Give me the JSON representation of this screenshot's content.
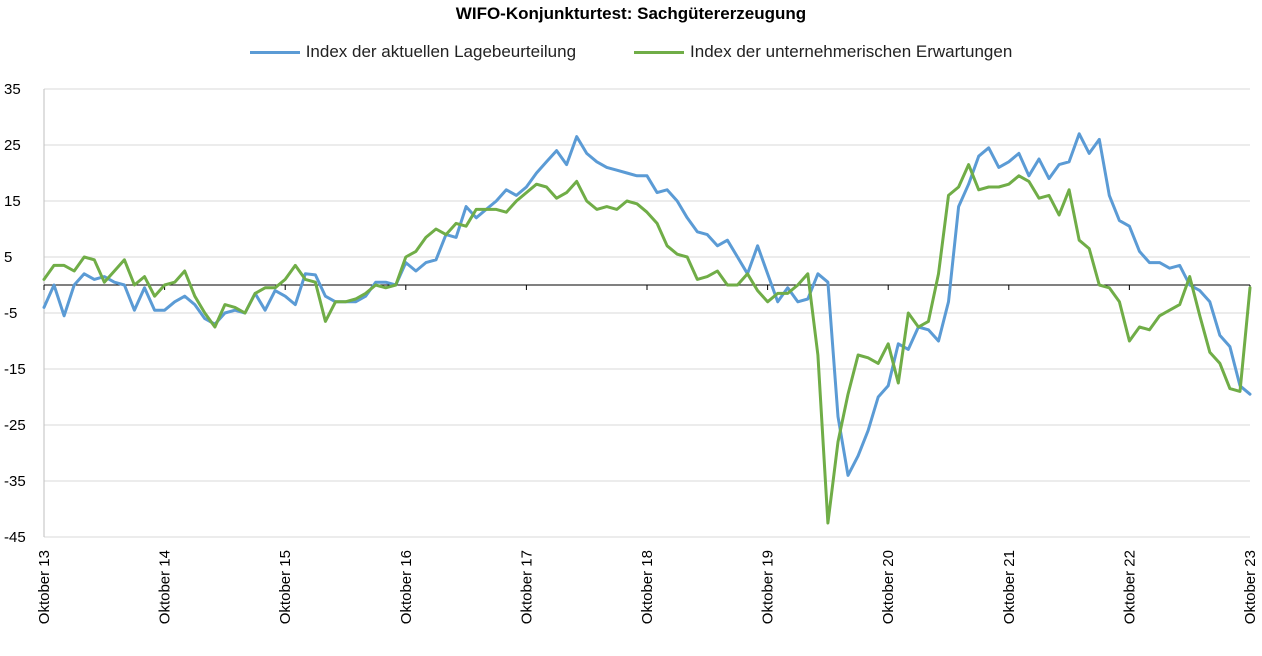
{
  "chart_data": {
    "type": "line",
    "title": "WIFO-Konjunkturtest: Sachgütererzeugung",
    "ylim": [
      -45,
      35
    ],
    "yticks": [
      35,
      25,
      15,
      5,
      -5,
      -15,
      -25,
      -35,
      -45
    ],
    "ytick_labels": [
      "35",
      "25",
      "15",
      "5",
      "-5",
      "-15",
      "-25",
      "-35",
      "-45"
    ],
    "x_tick_labels": [
      "Oktober 13",
      "Oktober 14",
      "Oktober 15",
      "Oktober 16",
      "Oktober 17",
      "Oktober 18",
      "Oktober 19",
      "Oktober 20",
      "Oktober 21",
      "Oktober 22",
      "Oktober 23"
    ],
    "x_tick_month_index": [
      0,
      12,
      24,
      36,
      48,
      60,
      72,
      84,
      96,
      108,
      120
    ],
    "legend_position": "top",
    "grid": true,
    "series": [
      {
        "name": "Index der aktuellen Lagebeurteilung",
        "color": "#5b9bd5",
        "values": [
          -4,
          0,
          -5.5,
          0,
          2,
          1,
          1.5,
          0.5,
          0,
          -4.5,
          -0.5,
          -4.5,
          -4.5,
          -3,
          -2,
          -3.5,
          -6,
          -7,
          -5,
          -4.5,
          -5,
          -1.5,
          -4.5,
          -1,
          -2,
          -3.5,
          2,
          1.8,
          -2,
          -3,
          -3,
          -3,
          -2,
          0.5,
          0.5,
          0,
          4,
          2.5,
          4,
          4.5,
          9,
          8.5,
          14,
          12,
          13.5,
          15,
          17,
          16,
          17.5,
          20,
          22,
          24,
          21.5,
          26.5,
          23.5,
          22,
          21,
          20.5,
          20,
          19.5,
          19.5,
          16.5,
          17,
          15,
          12,
          9.5,
          9,
          7,
          8,
          5,
          2,
          7,
          2,
          -3,
          -0.5,
          -3,
          -2.5,
          2,
          0.5,
          -23.5,
          -34,
          -30.5,
          -26,
          -20,
          -18,
          -10.5,
          -11.5,
          -7.5,
          -8,
          -10,
          -3,
          14,
          18,
          23,
          24.5,
          21,
          22,
          23.5,
          19.5,
          22.5,
          19,
          21.5,
          22,
          27,
          23.5,
          26,
          16,
          11.5,
          10.5,
          6,
          4,
          4,
          3,
          3.5,
          0,
          -1,
          -3,
          -9,
          -11,
          -18,
          -19.5
        ]
      },
      {
        "name": "Index der unternehmerischen Erwartungen",
        "color": "#70ad47",
        "values": [
          1,
          3.5,
          3.5,
          2.5,
          5,
          4.5,
          0.5,
          2.5,
          4.5,
          0,
          1.5,
          -2,
          0,
          0.5,
          2.5,
          -2,
          -5,
          -7.5,
          -3.5,
          -4,
          -5,
          -1.5,
          -0.5,
          -0.5,
          1,
          3.5,
          1,
          0.5,
          -6.5,
          -3,
          -3,
          -2.5,
          -1.5,
          0,
          -0.5,
          0,
          5,
          6,
          8.5,
          10,
          9,
          11,
          10.5,
          13.5,
          13.5,
          13.5,
          13,
          15,
          16.5,
          18,
          17.5,
          15.5,
          16.5,
          18.5,
          15,
          13.5,
          14,
          13.5,
          15,
          14.5,
          13,
          11,
          7,
          5.5,
          5,
          1,
          1.5,
          2.5,
          0,
          0,
          2,
          -1,
          -3,
          -1.5,
          -1.5,
          0,
          2,
          -12.5,
          -42.5,
          -28,
          -19.5,
          -12.5,
          -13,
          -14,
          -10.5,
          -17.5,
          -5,
          -7.5,
          -6.5,
          2,
          16,
          17.5,
          21.5,
          17,
          17.5,
          17.5,
          18,
          19.5,
          18.5,
          15.5,
          16,
          12.5,
          17,
          8,
          6.5,
          0,
          -0.5,
          -3,
          -10,
          -7.5,
          -8,
          -5.5,
          -4.5,
          -3.5,
          1.5,
          -5.5,
          -12,
          -14,
          -18.5,
          -19,
          -0.5
        ]
      }
    ]
  }
}
